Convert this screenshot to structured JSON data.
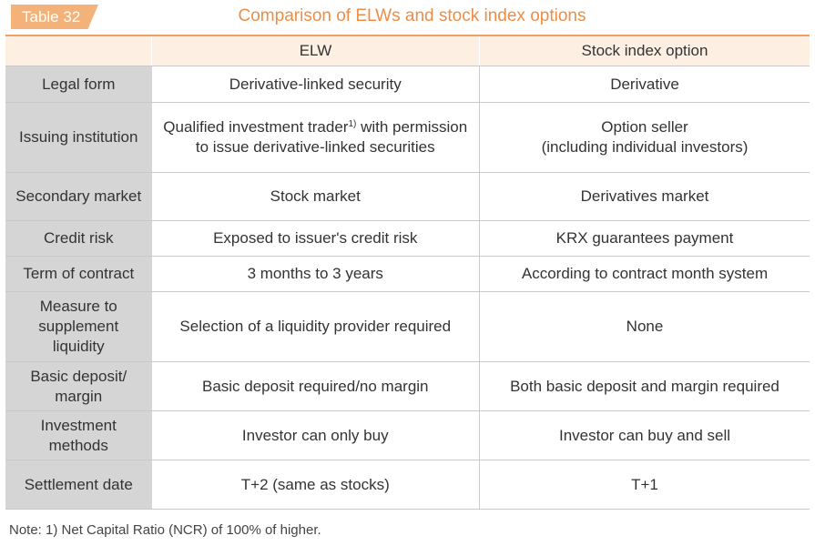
{
  "badge": "Table 32",
  "title": "Comparison of ELWs and stock index options",
  "columns": [
    "",
    "ELW",
    "Stock index option"
  ],
  "rows": [
    {
      "label": "Legal form",
      "elw": "Derivative-linked security",
      "option": "Derivative"
    },
    {
      "label": "Issuing institution",
      "elw_pre": "Qualified investment trader",
      "elw_sup": "1)",
      "elw_post": " with permission to issue derivative-linked securities",
      "option": "Option seller",
      "option2": "(including individual investors)"
    },
    {
      "label": "Secondary market",
      "elw": "Stock market",
      "option": "Derivatives market"
    },
    {
      "label": "Credit risk",
      "elw": "Exposed to issuer's credit risk",
      "option": "KRX guarantees payment"
    },
    {
      "label": "Term of contract",
      "elw": "3 months to 3 years",
      "option": "According to contract month system"
    },
    {
      "label": "Measure to supplement liquidity",
      "elw": "Selection of a liquidity provider required",
      "option": "None"
    },
    {
      "label": "Basic deposit/ margin",
      "elw": "Basic deposit required/no margin",
      "option": "Both basic deposit and margin required"
    },
    {
      "label": "Investment methods",
      "elw": "Investor can only buy",
      "option": "Investor can buy and sell"
    },
    {
      "label": "Settlement date",
      "elw": "T+2 (same as stocks)",
      "option": "T+1"
    }
  ],
  "note": "Note: 1) Net Capital Ratio (NCR) of 100% of higher.",
  "colors": {
    "accent": "#ee8d45",
    "badge": "#f3b27a",
    "header_bg": "#fdf0e3",
    "row_header_bg": "#d5d5d5"
  }
}
